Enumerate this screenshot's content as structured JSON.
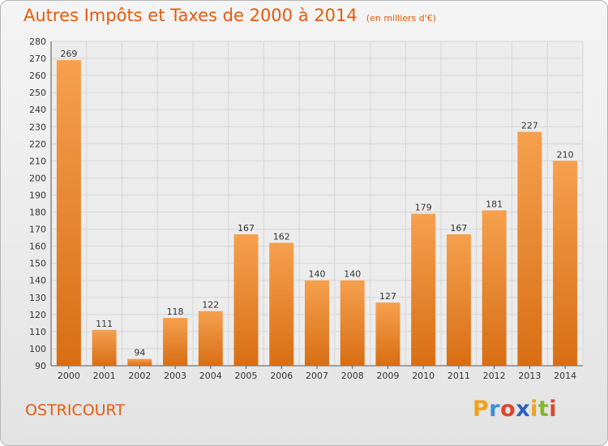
{
  "chart_data": {
    "type": "bar",
    "title": "Autres Impôts et Taxes de 2000 à 2014",
    "subtitle": "(en milliers d'€)",
    "categories": [
      "2000",
      "2001",
      "2002",
      "2003",
      "2004",
      "2005",
      "2006",
      "2007",
      "2008",
      "2009",
      "2010",
      "2011",
      "2012",
      "2013",
      "2014"
    ],
    "values": [
      269,
      111,
      94,
      118,
      122,
      167,
      162,
      140,
      140,
      127,
      179,
      167,
      181,
      227,
      210
    ],
    "ylim": [
      90,
      280
    ],
    "yticks": [
      90,
      100,
      110,
      120,
      130,
      140,
      150,
      160,
      170,
      180,
      190,
      200,
      210,
      220,
      230,
      240,
      250,
      260,
      270,
      280
    ],
    "grid": true,
    "bar_color": "#f0923a"
  },
  "commune": "OSTRICOURT",
  "logo": {
    "letters": [
      "P",
      "r",
      "o",
      "x",
      "i",
      "t",
      "i"
    ],
    "colors": [
      "#f0a218",
      "#3c8fd6",
      "#e0442c",
      "#2c5fbf",
      "#f0a218",
      "#86b62e",
      "#e0442c"
    ]
  }
}
